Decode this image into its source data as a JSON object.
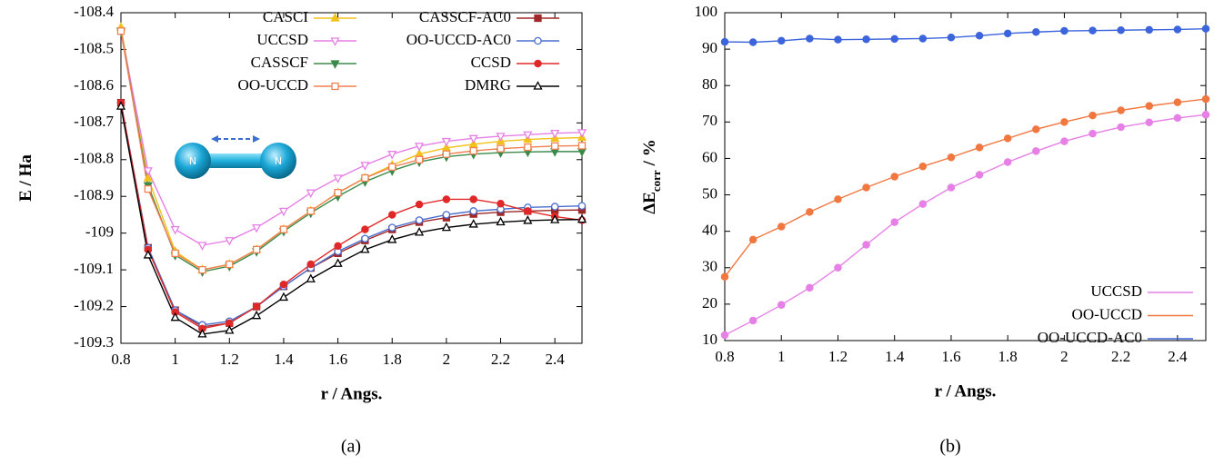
{
  "chart_data": [
    {
      "type": "line",
      "x_label": "r / Angs.",
      "y_label": [
        "E / Ha"
      ],
      "caption": "(a)",
      "x": [
        0.8,
        0.9,
        1.0,
        1.1,
        1.2,
        1.3,
        1.4,
        1.5,
        1.6,
        1.7,
        1.8,
        1.9,
        2.0,
        2.1,
        2.2,
        2.3,
        2.4,
        2.5
      ],
      "xlim": [
        0.8,
        2.5
      ],
      "xticks": [
        0.8,
        1,
        1.2,
        1.4,
        1.6,
        1.8,
        2,
        2.2,
        2.4
      ],
      "ylim": [
        -109.3,
        -108.4
      ],
      "yticks": [
        -108.4,
        -108.5,
        -108.6,
        -108.7,
        -108.8,
        -108.9,
        -109,
        -109.1,
        -109.2,
        -109.3
      ],
      "legend": "upper right",
      "annotations": [
        "N",
        "N"
      ],
      "series": [
        {
          "name": "CASCI",
          "color": "#f2c11a",
          "marker": "triangle-up",
          "values": [
            -108.44,
            -108.85,
            -109.05,
            -109.1,
            -109.085,
            -109.045,
            -108.99,
            -108.94,
            -108.89,
            -108.85,
            -108.815,
            -108.785,
            -108.768,
            -108.758,
            -108.75,
            -108.745,
            -108.742,
            -108.74
          ]
        },
        {
          "name": "UCCSD",
          "color": "#e680e6",
          "marker": "triangle-down-open",
          "values": [
            -108.45,
            -108.83,
            -108.99,
            -109.033,
            -109.02,
            -108.985,
            -108.94,
            -108.89,
            -108.85,
            -108.815,
            -108.785,
            -108.763,
            -108.75,
            -108.742,
            -108.736,
            -108.732,
            -108.728,
            -108.726
          ]
        },
        {
          "name": "CASSCF",
          "color": "#3a8a4a",
          "marker": "triangle-down",
          "values": [
            -108.45,
            -108.87,
            -109.06,
            -109.105,
            -109.09,
            -109.05,
            -108.995,
            -108.945,
            -108.9,
            -108.86,
            -108.83,
            -108.806,
            -108.792,
            -108.785,
            -108.781,
            -108.779,
            -108.778,
            -108.778
          ]
        },
        {
          "name": "OO-UCCD",
          "color": "#f08050",
          "marker": "square-open",
          "values": [
            -108.45,
            -108.88,
            -109.055,
            -109.1,
            -109.085,
            -109.045,
            -108.99,
            -108.94,
            -108.89,
            -108.85,
            -108.82,
            -108.8,
            -108.785,
            -108.776,
            -108.77,
            -108.766,
            -108.763,
            -108.762
          ]
        },
        {
          "name": "CASSCF-AC0",
          "color": "#a02828",
          "marker": "square",
          "values": [
            -108.645,
            -109.04,
            -109.21,
            -109.255,
            -109.245,
            -109.2,
            -109.145,
            -109.095,
            -109.055,
            -109.02,
            -108.99,
            -108.97,
            -108.958,
            -108.948,
            -108.943,
            -108.94,
            -108.938,
            -108.937
          ]
        },
        {
          "name": "OO-UCCD-AC0",
          "color": "#4a6fd0",
          "marker": "circle-open",
          "values": [
            -108.645,
            -109.04,
            -109.21,
            -109.25,
            -109.24,
            -109.2,
            -109.145,
            -109.095,
            -109.05,
            -109.015,
            -108.985,
            -108.965,
            -108.95,
            -108.94,
            -108.935,
            -108.93,
            -108.928,
            -108.926
          ]
        },
        {
          "name": "CCSD",
          "color": "#e02828",
          "marker": "circle",
          "values": [
            -108.645,
            -109.045,
            -109.215,
            -109.26,
            -109.245,
            -109.2,
            -109.14,
            -109.085,
            -109.035,
            -108.99,
            -108.95,
            -108.922,
            -108.908,
            -108.908,
            -108.92,
            -108.94,
            -108.955,
            -108.965
          ]
        },
        {
          "name": "DMRG",
          "color": "#000000",
          "marker": "triangle-up-open",
          "values": [
            -108.655,
            -109.06,
            -109.23,
            -109.275,
            -109.265,
            -109.225,
            -109.175,
            -109.125,
            -109.083,
            -109.045,
            -109.018,
            -108.998,
            -108.985,
            -108.976,
            -108.97,
            -108.966,
            -108.964,
            -108.963
          ]
        }
      ]
    },
    {
      "type": "line",
      "x_label": "r / Angs.",
      "y_label": [
        "ΔE",
        "corr",
        "/ %"
      ],
      "caption": "(b)",
      "x": [
        0.8,
        0.9,
        1.0,
        1.1,
        1.2,
        1.3,
        1.4,
        1.5,
        1.6,
        1.7,
        1.8,
        1.9,
        2.0,
        2.1,
        2.2,
        2.3,
        2.4,
        2.5
      ],
      "xlim": [
        0.8,
        2.5
      ],
      "xticks": [
        0.8,
        1,
        1.2,
        1.4,
        1.6,
        1.8,
        2,
        2.2,
        2.4
      ],
      "ylim": [
        10,
        100
      ],
      "yticks": [
        10,
        20,
        30,
        40,
        50,
        60,
        70,
        80,
        90,
        100
      ],
      "legend": "lower right",
      "series": [
        {
          "name": "UCCSD",
          "color": "#e680e6",
          "marker": "circle",
          "values": [
            11.5,
            15.5,
            19.8,
            24.5,
            30,
            36.3,
            42.5,
            47.5,
            52,
            55.5,
            59,
            62,
            64.7,
            66.8,
            68.6,
            69.9,
            71.1,
            72
          ]
        },
        {
          "name": "OO-UCCD",
          "color": "#f07840",
          "marker": "circle",
          "values": [
            27.5,
            37.7,
            41.3,
            45.3,
            48.8,
            52,
            55,
            57.8,
            60.3,
            63,
            65.5,
            68,
            70,
            71.8,
            73.2,
            74.4,
            75.4,
            76.3
          ]
        },
        {
          "name": "OO-UCCD-AC0",
          "color": "#3c64dc",
          "marker": "circle",
          "values": [
            92,
            91.9,
            92.3,
            92.9,
            92.6,
            92.7,
            92.8,
            92.9,
            93.2,
            93.7,
            94.3,
            94.7,
            95,
            95.1,
            95.2,
            95.3,
            95.4,
            95.6
          ]
        }
      ]
    }
  ]
}
